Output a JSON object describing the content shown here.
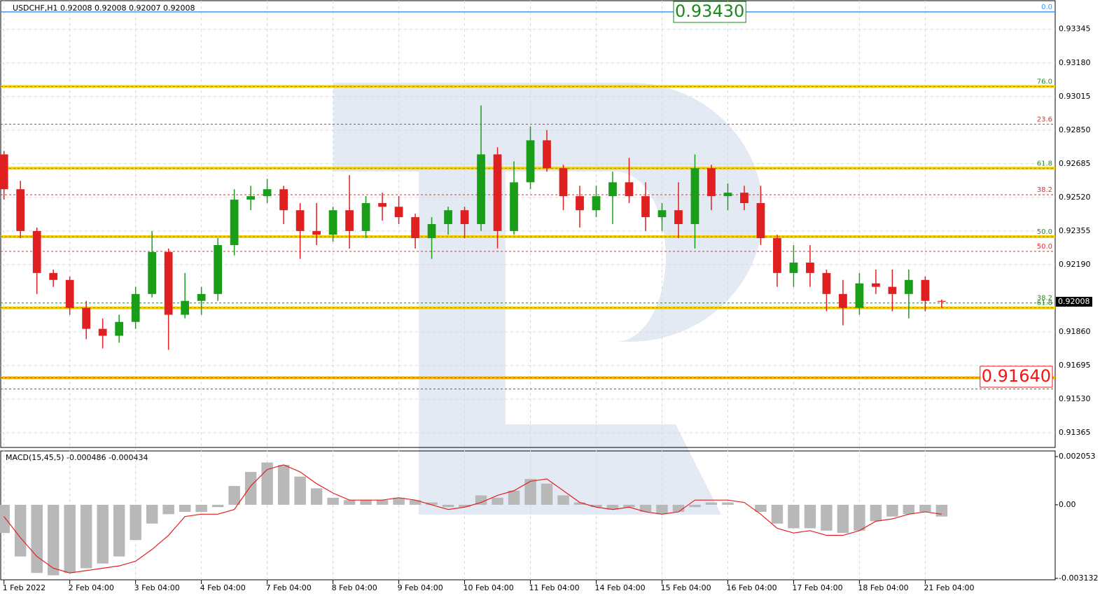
{
  "chart_data": [
    {
      "type": "candlestick",
      "title": "USDCHF,H1  0.92008 0.92008 0.92007 0.92008",
      "up_color": "#1a9e1a",
      "down_color": "#e02020",
      "grid": true,
      "xlim": [
        -0.2,
        63.9
      ],
      "ylim": [
        0.91293,
        0.93485
      ],
      "xticks": [
        {
          "value": 0,
          "label": "1 Feb 2022"
        },
        {
          "value": 4,
          "label": "2 Feb 04:00"
        },
        {
          "value": 8,
          "label": "3 Feb 04:00"
        },
        {
          "value": 12,
          "label": "4 Feb 04:00"
        },
        {
          "value": 16,
          "label": "7 Feb 04:00"
        },
        {
          "value": 20,
          "label": "8 Feb 04:00"
        },
        {
          "value": 24,
          "label": "9 Feb 04:00"
        },
        {
          "value": 28,
          "label": "10 Feb 04:00"
        },
        {
          "value": 32,
          "label": "11 Feb 04:00"
        },
        {
          "value": 36,
          "label": "14 Feb 04:00"
        },
        {
          "value": 40,
          "label": "15 Feb 04:00"
        },
        {
          "value": 44,
          "label": "16 Feb 04:00"
        },
        {
          "value": 48,
          "label": "17 Feb 04:00"
        },
        {
          "value": 52,
          "label": "18 Feb 04:00"
        },
        {
          "value": 56,
          "label": "21 Feb 04:00"
        }
      ],
      "yticks": [
        0.93345,
        {
          "value": 0.9318,
          "label": "0.93180"
        },
        0.93015,
        {
          "value": 0.9285,
          "label": "0.92850"
        },
        0.92685,
        {
          "value": 0.9252,
          "label": "0.92520"
        },
        0.92355,
        {
          "value": 0.9219,
          "label": "0.92190"
        },
        {
          "value": 0.9186,
          "label": "0.91860"
        },
        0.91695,
        {
          "value": 0.9153,
          "label": "0.91530"
        },
        0.91365
      ],
      "open": [
        0.92731,
        0.9256,
        0.92355,
        0.92149,
        0.92115,
        0.91978,
        0.91875,
        0.91841,
        0.91909,
        0.92046,
        0.92252,
        0.91944,
        0.92012,
        0.92046,
        0.92286,
        0.92509,
        0.92526,
        0.9256,
        0.92457,
        0.92355,
        0.92337,
        0.92457,
        0.92355,
        0.92492,
        0.92474,
        0.92423,
        0.9232,
        0.92389,
        0.92457,
        0.92389,
        0.92731,
        0.92355,
        0.92594,
        0.928,
        0.92663,
        0.92526,
        0.92457,
        0.92526,
        0.92594,
        0.92526,
        0.92423,
        0.92457,
        0.92389,
        0.92663,
        0.92526,
        0.92543,
        0.92492,
        0.9232,
        0.92149,
        0.922,
        0.92149,
        0.92046,
        0.91978,
        0.92098,
        0.92081,
        0.92046,
        0.92115,
        0.92012
      ],
      "high": [
        0.92748,
        0.92601,
        0.92372,
        0.92166,
        0.92132,
        0.92012,
        0.91926,
        0.91944,
        0.92081,
        0.92355,
        0.92269,
        0.92149,
        0.92081,
        0.9232,
        0.9256,
        0.92577,
        0.92611,
        0.92577,
        0.92492,
        0.92492,
        0.92474,
        0.92629,
        0.92526,
        0.92543,
        0.92526,
        0.9244,
        0.92423,
        0.92474,
        0.92474,
        0.92971,
        0.92766,
        0.92697,
        0.92868,
        0.92851,
        0.9268,
        0.92577,
        0.92577,
        0.92646,
        0.92714,
        0.92594,
        0.92492,
        0.92594,
        0.92731,
        0.9268,
        0.92588,
        0.92577,
        0.92577,
        0.92337,
        0.92286,
        0.92286,
        0.92166,
        0.92115,
        0.92149,
        0.92166,
        0.92166,
        0.92166,
        0.92132,
        0.92019
      ],
      "low": [
        0.92509,
        0.9232,
        0.92046,
        0.92081,
        0.91944,
        0.91824,
        0.91779,
        0.91807,
        0.91875,
        0.92029,
        0.91772,
        0.91926,
        0.91944,
        0.92012,
        0.92235,
        0.92457,
        0.92492,
        0.92389,
        0.92218,
        0.92286,
        0.92303,
        0.92269,
        0.9232,
        0.92406,
        0.92389,
        0.92269,
        0.92218,
        0.92337,
        0.9232,
        0.92355,
        0.92269,
        0.92337,
        0.9256,
        0.92646,
        0.92457,
        0.92372,
        0.92423,
        0.92389,
        0.92492,
        0.92355,
        0.92355,
        0.9232,
        0.92269,
        0.92457,
        0.92457,
        0.92457,
        0.92286,
        0.92081,
        0.92081,
        0.92081,
        0.91961,
        0.91892,
        0.91944,
        0.92046,
        0.91961,
        0.91926,
        0.91961,
        0.91978
      ],
      "close": [
        0.9256,
        0.92355,
        0.92149,
        0.92115,
        0.91978,
        0.91875,
        0.91841,
        0.91909,
        0.92046,
        0.92252,
        0.91944,
        0.92012,
        0.92046,
        0.92286,
        0.92509,
        0.92526,
        0.9256,
        0.92457,
        0.92355,
        0.92337,
        0.92457,
        0.92355,
        0.92492,
        0.92474,
        0.92423,
        0.9232,
        0.92389,
        0.92457,
        0.92389,
        0.92731,
        0.92355,
        0.92594,
        0.928,
        0.92663,
        0.92526,
        0.92457,
        0.92526,
        0.92594,
        0.92526,
        0.92423,
        0.92457,
        0.92389,
        0.92663,
        0.92526,
        0.92543,
        0.92492,
        0.9232,
        0.92149,
        0.922,
        0.92149,
        0.92046,
        0.91978,
        0.92098,
        0.92081,
        0.92046,
        0.92115,
        0.92012,
        0.92008
      ],
      "levels": [
        {
          "value": 0.9343,
          "label": "0.0",
          "style": "solid",
          "color": "#3399ff"
        },
        {
          "value": 0.93064,
          "label": "76.0",
          "style": "band",
          "color": "#f5d000"
        },
        {
          "value": 0.92879,
          "label": "23.6",
          "style": "dashed",
          "color": "#e03030"
        },
        {
          "value": 0.92663,
          "label": "61.8",
          "style": "band",
          "color": "#f5d000"
        },
        {
          "value": 0.92533,
          "label": "38.2",
          "style": "dashed",
          "color": "#e03030"
        },
        {
          "value": 0.92327,
          "label": "50.0",
          "style": "band",
          "color": "#f5d000"
        },
        {
          "value": 0.92255,
          "label": "50.0",
          "style": "dashed",
          "color": "#e03030"
        },
        {
          "value": 0.92002,
          "label": "38.2",
          "style": "dashed",
          "color": "#2a8a2a"
        },
        {
          "value": 0.91978,
          "label": "61.8",
          "style": "band",
          "color": "#f5d000"
        },
        {
          "value": 0.91635,
          "label": "76.0",
          "style": "band",
          "color": "#f5b000"
        },
        {
          "value": 0.9158,
          "label": "23.6",
          "style": "dashed",
          "color": "#2a8a2a"
        }
      ],
      "annotations": [
        {
          "value": 0.9343,
          "label": "0.93430",
          "color": "#1a8a1a"
        },
        {
          "value": 0.9164,
          "label": "0.91640",
          "color": "#ff1010"
        }
      ],
      "last_price": 0.92008
    },
    {
      "type": "macd",
      "title": "MACD(15,45,5) -0.000486 -0.000434",
      "xlim": [
        -0.2,
        63.9
      ],
      "ylim": [
        -0.003132,
        0.002053
      ],
      "yticks": [
        0.002053,
        {
          "value": 0,
          "label": "0.00"
        },
        -0.003132
      ],
      "histogram_color": "#b8b8b8",
      "signal_color": "#e02020",
      "histogram": [
        -0.0012,
        -0.0022,
        -0.0029,
        -0.003,
        -0.0029,
        -0.0027,
        -0.0025,
        -0.0022,
        -0.0015,
        -0.0008,
        -0.0004,
        -0.0003,
        -0.0003,
        -0.0001,
        0.0008,
        0.0014,
        0.0018,
        0.0017,
        0.0012,
        0.0007,
        0.0003,
        0.0002,
        0.0002,
        0.0002,
        0.0003,
        0.0002,
        0.0001,
        -0.0001,
        -0.0001,
        0.0004,
        0.0003,
        0.0006,
        0.0011,
        0.0009,
        0.0004,
        0.0001,
        -0.0001,
        -0.0002,
        -0.0001,
        -0.0003,
        -0.0004,
        -0.0003,
        -0.0001,
        0.0001,
        0.0001,
        0,
        -0.0003,
        -0.0008,
        -0.001,
        -0.001,
        -0.0011,
        -0.0012,
        -0.0011,
        -0.0007,
        -0.0005,
        -0.0004,
        -0.0003,
        -0.0005
      ],
      "signal": [
        -0.0005,
        -0.0014,
        -0.0022,
        -0.0027,
        -0.0029,
        -0.0028,
        -0.0027,
        -0.0026,
        -0.0024,
        -0.0019,
        -0.0013,
        -0.0005,
        -0.0004,
        -0.0004,
        -0.0002,
        0.0008,
        0.0015,
        0.0017,
        0.0014,
        0.0009,
        0.0005,
        0.0002,
        0.0002,
        0.0002,
        0.0003,
        0.0002,
        0,
        -0.0002,
        -0.0001,
        0.0001,
        0.0004,
        0.0006,
        0.001,
        0.0011,
        0.0006,
        0.0001,
        -0.0001,
        -0.0002,
        -0.0001,
        -0.0003,
        -0.0004,
        -0.0003,
        0.0002,
        0.0002,
        0.0002,
        0.0001,
        -0.0004,
        -0.001,
        -0.0012,
        -0.0011,
        -0.0013,
        -0.0013,
        -0.0011,
        -0.0007,
        -0.0006,
        -0.0004,
        -0.0003,
        -0.0004
      ]
    }
  ]
}
